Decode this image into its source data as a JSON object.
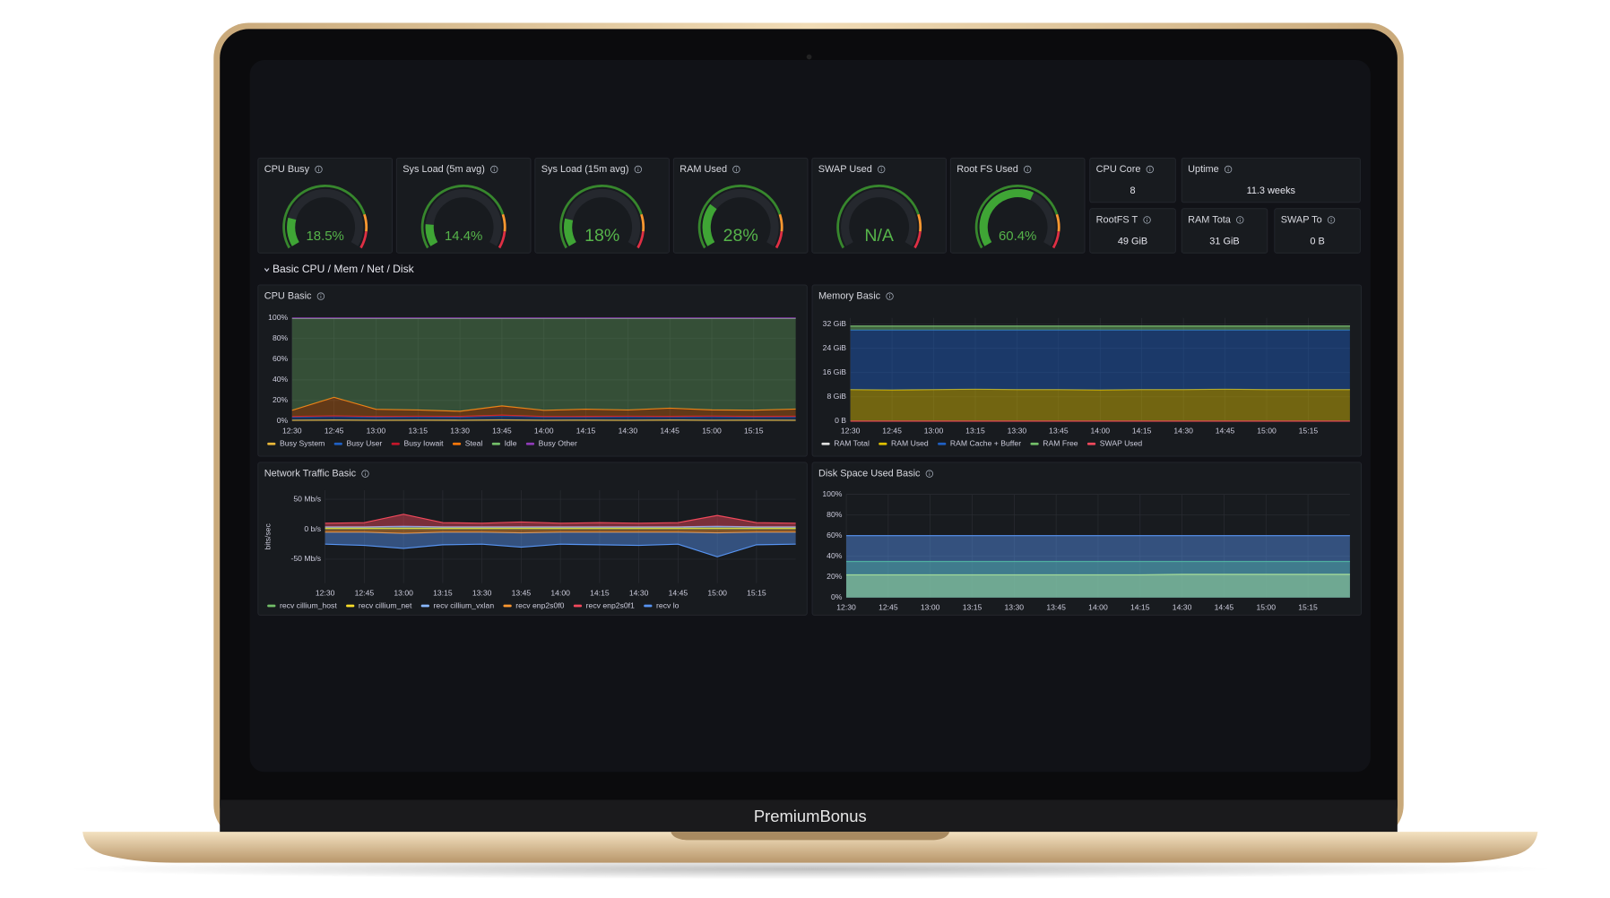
{
  "brand": "PremiumBonus",
  "section": "Basic CPU / Mem / Net / Disk",
  "gauge_range": [
    0,
    100
  ],
  "gauges": [
    {
      "title": "CPU Busy",
      "value": 18.5,
      "value_label": "18.5%"
    },
    {
      "title": "Sys Load (5m avg)",
      "value": 14.4,
      "value_label": "14.4%"
    },
    {
      "title": "Sys Load (15m avg)",
      "value": 18,
      "value_label": "18%"
    },
    {
      "title": "RAM Used",
      "value": 28,
      "value_label": "28%"
    },
    {
      "title": "SWAP Used",
      "value": null,
      "value_label": "N/A"
    },
    {
      "title": "Root FS Used",
      "value": 60.4,
      "value_label": "60.4%"
    }
  ],
  "stats": [
    {
      "title": "CPU Core",
      "value": 8
    },
    {
      "title": "Uptime",
      "value": "11.3 weeks"
    },
    {
      "title": "RootFS T",
      "value": "49 GiB"
    },
    {
      "title": "RAM Tota",
      "value": "31 GiB"
    },
    {
      "title": "SWAP To",
      "value": "0 B"
    }
  ],
  "chart_data": [
    {
      "type": "area",
      "title": "CPU Basic",
      "x": [
        750,
        765,
        780,
        795,
        810,
        825,
        840,
        855,
        870,
        885,
        900,
        915,
        930
      ],
      "xlim": [
        750,
        930
      ],
      "xticks": [
        {
          "value": 750,
          "label": "12:30"
        },
        {
          "value": 765,
          "label": "12:45"
        },
        {
          "value": 780,
          "label": "13:00"
        },
        {
          "value": 795,
          "label": "13:15"
        },
        {
          "value": 810,
          "label": "13:30"
        },
        {
          "value": 825,
          "label": "13:45"
        },
        {
          "value": 840,
          "label": "14:00"
        },
        {
          "value": 855,
          "label": "14:15"
        },
        {
          "value": 870,
          "label": "14:30"
        },
        {
          "value": 885,
          "label": "14:45"
        },
        {
          "value": 900,
          "label": "15:00"
        },
        {
          "value": 915,
          "label": "15:15"
        }
      ],
      "ylim": [
        0,
        100
      ],
      "yticks": [
        {
          "value": 0,
          "label": "0%"
        },
        {
          "value": 20,
          "label": "20%"
        },
        {
          "value": 40,
          "label": "40%"
        },
        {
          "value": 60,
          "label": "60%"
        },
        {
          "value": 80,
          "label": "80%"
        },
        {
          "value": 100,
          "label": "100%"
        }
      ],
      "series": [
        {
          "name": "Busy System",
          "color": "#EAB839",
          "stack": true,
          "values": [
            1,
            1.2,
            1,
            1.1,
            1,
            1.3,
            1,
            1.1,
            1,
            1.2,
            1,
            1.1,
            1
          ]
        },
        {
          "name": "Busy User",
          "color": "#1F60C4",
          "stack": true,
          "values": [
            3,
            3.5,
            3,
            3.2,
            3,
            4,
            3.1,
            3,
            3.3,
            3,
            3.4,
            3,
            3.2
          ]
        },
        {
          "name": "Busy Iowait",
          "color": "#C4162A",
          "stack": true,
          "values": [
            0.5,
            0.4,
            0.5,
            0.5,
            0.6,
            0.5,
            0.4,
            0.5,
            0.5,
            0.4,
            0.5,
            0.5,
            0.5
          ]
        },
        {
          "name": "Steal",
          "color": "#FF780A",
          "stack": true,
          "values": [
            6,
            18,
            7,
            6,
            5,
            9,
            6,
            7,
            6,
            8,
            6,
            6,
            7
          ]
        },
        {
          "name": "Idle",
          "color": "#73BF69",
          "stack": true,
          "values": [
            89,
            76.4,
            88,
            88.7,
            89.9,
            84.7,
            89,
            87.9,
            88.7,
            86.9,
            88.6,
            88.9,
            87.8
          ]
        },
        {
          "name": "Busy Other",
          "color": "#8F3BB8",
          "stack": true,
          "values": [
            0.5,
            0.5,
            0.5,
            0.5,
            0.5,
            0.5,
            0.5,
            0.5,
            0.5,
            0.5,
            0.5,
            0.5,
            0.5
          ]
        }
      ]
    },
    {
      "type": "area",
      "title": "Memory Basic",
      "x": [
        750,
        765,
        780,
        795,
        810,
        825,
        840,
        855,
        870,
        885,
        900,
        915,
        930
      ],
      "xlim": [
        750,
        930
      ],
      "xticks": [
        {
          "value": 750,
          "label": "12:30"
        },
        {
          "value": 765,
          "label": "12:45"
        },
        {
          "value": 780,
          "label": "13:00"
        },
        {
          "value": 795,
          "label": "13:15"
        },
        {
          "value": 810,
          "label": "13:30"
        },
        {
          "value": 825,
          "label": "13:45"
        },
        {
          "value": 840,
          "label": "14:00"
        },
        {
          "value": 855,
          "label": "14:15"
        },
        {
          "value": 870,
          "label": "14:30"
        },
        {
          "value": 885,
          "label": "14:45"
        },
        {
          "value": 900,
          "label": "15:00"
        },
        {
          "value": 915,
          "label": "15:15"
        }
      ],
      "ylim": [
        0,
        34
      ],
      "yticks": [
        {
          "value": 0,
          "label": "0 B"
        },
        {
          "value": 8,
          "label": "8 GiB"
        },
        {
          "value": 16,
          "label": "16 GiB"
        },
        {
          "value": 24,
          "label": "24 GiB"
        },
        {
          "value": 32,
          "label": "32 GiB"
        }
      ],
      "series": [
        {
          "name": "RAM Total",
          "color": "#E0E0E0",
          "values": [
            31.3,
            31.3,
            31.3,
            31.3,
            31.3,
            31.3,
            31.3,
            31.3,
            31.3,
            31.3,
            31.3,
            31.3,
            31.3
          ]
        },
        {
          "name": "RAM Used",
          "color": "#E0C000",
          "stack": true,
          "values": [
            10.4,
            10.3,
            10.4,
            10.5,
            10.4,
            10.4,
            10.3,
            10.4,
            10.4,
            10.5,
            10.4,
            10.4,
            10.4
          ]
        },
        {
          "name": "RAM Cache + Buffer",
          "color": "#1F60C4",
          "stack": true,
          "values": [
            19.6,
            19.7,
            19.6,
            19.5,
            19.6,
            19.6,
            19.7,
            19.6,
            19.6,
            19.5,
            19.6,
            19.6,
            19.6
          ]
        },
        {
          "name": "RAM Free",
          "color": "#73BF69",
          "stack": true,
          "values": [
            1.3,
            1.3,
            1.3,
            1.3,
            1.3,
            1.3,
            1.3,
            1.3,
            1.3,
            1.3,
            1.3,
            1.3,
            1.3
          ]
        },
        {
          "name": "SWAP Used",
          "color": "#F2495C",
          "values": [
            0,
            0,
            0,
            0,
            0,
            0,
            0,
            0,
            0,
            0,
            0,
            0,
            0
          ]
        }
      ]
    },
    {
      "type": "area",
      "title": "Network Traffic Basic",
      "y_label": "bits/sec",
      "x": [
        750,
        765,
        780,
        795,
        810,
        825,
        840,
        855,
        870,
        885,
        900,
        915,
        930
      ],
      "xlim": [
        750,
        930
      ],
      "xticks": [
        {
          "value": 750,
          "label": "12:30"
        },
        {
          "value": 765,
          "label": "12:45"
        },
        {
          "value": 780,
          "label": "13:00"
        },
        {
          "value": 795,
          "label": "13:15"
        },
        {
          "value": 810,
          "label": "13:30"
        },
        {
          "value": 825,
          "label": "13:45"
        },
        {
          "value": 840,
          "label": "14:00"
        },
        {
          "value": 855,
          "label": "14:15"
        },
        {
          "value": 870,
          "label": "14:30"
        },
        {
          "value": 885,
          "label": "14:45"
        },
        {
          "value": 900,
          "label": "15:00"
        },
        {
          "value": 915,
          "label": "15:15"
        }
      ],
      "ylim": [
        -90,
        65
      ],
      "yticks": [
        {
          "value": 50,
          "label": "50 Mb/s"
        },
        {
          "value": 0,
          "label": "0 b/s"
        },
        {
          "value": -50,
          "label": "-50 Mb/s"
        }
      ],
      "series": [
        {
          "name": "recv cillium_host",
          "color": "#73BF69",
          "stack": true,
          "values": [
            1,
            1,
            1,
            1,
            1,
            1,
            1,
            1,
            1,
            1,
            1,
            1,
            1
          ]
        },
        {
          "name": "recv cillium_net",
          "color": "#FADE2A",
          "stack": true,
          "values": [
            1,
            1,
            1,
            1,
            1,
            1,
            1,
            1,
            1,
            1,
            1,
            1,
            1
          ]
        },
        {
          "name": "recv cillium_vxlan",
          "color": "#8AB8FF",
          "stack": true,
          "values": [
            2,
            2,
            3,
            2,
            2,
            2,
            2,
            2,
            2,
            2,
            3,
            2,
            2
          ]
        },
        {
          "name": "recv enp2s0f0",
          "color": "#FF9830",
          "stack": true,
          "values": [
            -5,
            -5,
            -7,
            -5,
            -5,
            -6,
            -5,
            -5,
            -5,
            -5,
            -6,
            -5,
            -5
          ]
        },
        {
          "name": "recv enp2s0f1",
          "color": "#F2495C",
          "stack": true,
          "values": [
            6,
            7,
            20,
            7,
            6,
            8,
            6,
            7,
            6,
            7,
            18,
            7,
            6
          ]
        },
        {
          "name": "recv lo",
          "color": "#5794F2",
          "stack": true,
          "values": [
            -20,
            -22,
            -25,
            -21,
            -20,
            -24,
            -20,
            -21,
            -22,
            -20,
            -40,
            -21,
            -20
          ]
        }
      ]
    },
    {
      "type": "area",
      "title": "Disk Space Used Basic",
      "x": [
        750,
        765,
        780,
        795,
        810,
        825,
        840,
        855,
        870,
        885,
        900,
        915,
        930
      ],
      "xlim": [
        750,
        930
      ],
      "xticks": [
        {
          "value": 750,
          "label": "12:30"
        },
        {
          "value": 765,
          "label": "12:45"
        },
        {
          "value": 780,
          "label": "13:00"
        },
        {
          "value": 795,
          "label": "13:15"
        },
        {
          "value": 810,
          "label": "13:30"
        },
        {
          "value": 825,
          "label": "13:45"
        },
        {
          "value": 840,
          "label": "14:00"
        },
        {
          "value": 855,
          "label": "14:15"
        },
        {
          "value": 870,
          "label": "14:30"
        },
        {
          "value": 885,
          "label": "14:45"
        },
        {
          "value": 900,
          "label": "15:00"
        },
        {
          "value": 915,
          "label": "15:15"
        }
      ],
      "ylim": [
        0,
        100
      ],
      "yticks": [
        {
          "value": 0,
          "label": "0%"
        },
        {
          "value": 20,
          "label": "20%"
        },
        {
          "value": 40,
          "label": "40%"
        },
        {
          "value": 60,
          "label": "60%"
        },
        {
          "value": 80,
          "label": "80%"
        },
        {
          "value": 100,
          "label": "100%"
        }
      ],
      "series": [
        {
          "color": "#5794F2",
          "values": [
            60,
            60,
            60,
            60,
            60,
            60,
            60,
            60,
            60,
            60,
            60,
            60,
            60
          ]
        },
        {
          "color": "#4FB0A0",
          "values": [
            35,
            35,
            35,
            35,
            35,
            35,
            35,
            35,
            35,
            35,
            35,
            35,
            35
          ]
        },
        {
          "color": "#A8E09A",
          "values": [
            22,
            22,
            22,
            22,
            22,
            22,
            22,
            22,
            22.5,
            22.5,
            22.5,
            22.5,
            22.5
          ]
        }
      ]
    }
  ]
}
